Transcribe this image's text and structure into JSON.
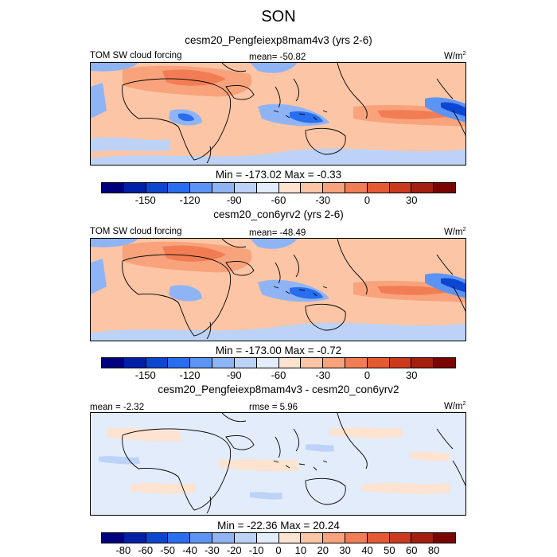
{
  "season": "SON",
  "unit_base": "W/m",
  "unit_exp": "2",
  "panels": [
    {
      "subtitle": "cesm20_Pengfeiexp8mam4v3 (yrs 2-6)",
      "left_label": "TOM SW cloud forcing",
      "center_label": "mean= -50.82",
      "minmax": "Min = -173.02 Max =  -0.33"
    },
    {
      "subtitle": "cesm20_con6yrv2 (yrs 2-6)",
      "left_label": "TOM SW cloud forcing",
      "center_label": "mean= -48.49",
      "minmax": "Min = -173.00 Max =  -0.72"
    },
    {
      "subtitle": "cesm20_Pengfeiexp8mam4v3 - cesm20_con6yrv2",
      "left_label": "mean =  -2.32",
      "center_label": "rmse =   5.96",
      "minmax": "Min = -22.36 Max =  20.24"
    }
  ],
  "colorbar_abs": {
    "colors": [
      "#00007f",
      "#0020a8",
      "#0d47d1",
      "#2a6ef0",
      "#5c94f5",
      "#8fb4f5",
      "#bcd3f7",
      "#e3ecfb",
      "#fde3d0",
      "#fcc5a6",
      "#f8a37c",
      "#f27d55",
      "#e55a33",
      "#cc3a1e",
      "#a51f10",
      "#7a0500"
    ],
    "tick_labels": [
      "-150",
      "-120",
      "-90",
      "-60",
      "-30",
      "0",
      "30"
    ]
  },
  "colorbar_diff": {
    "colors": [
      "#00007f",
      "#0020a8",
      "#0d47d1",
      "#2a6ef0",
      "#5c94f5",
      "#8fb4f5",
      "#bcd3f7",
      "#e3ecfb",
      "#fde3d0",
      "#fcc5a6",
      "#f8a37c",
      "#f27d55",
      "#e55a33",
      "#cc3a1e",
      "#a51f10",
      "#7a0500"
    ],
    "tick_labels": [
      "-80",
      "-60",
      "-50",
      "-40",
      "-30",
      "-20",
      "-10",
      "0",
      "10",
      "20",
      "30",
      "40",
      "50",
      "60",
      "80"
    ]
  },
  "chart_data": [
    {
      "type": "heatmap",
      "title": "cesm20_Pengfeiexp8mam4v3 (yrs 2-6)",
      "variable": "TOM SW cloud forcing",
      "mean": -50.82,
      "min": -173.02,
      "max": -0.33,
      "levels": [
        -150,
        -120,
        -90,
        -60,
        -30,
        0,
        30
      ]
    },
    {
      "type": "heatmap",
      "title": "cesm20_con6yrv2 (yrs 2-6)",
      "variable": "TOM SW cloud forcing",
      "mean": -48.49,
      "min": -173.0,
      "max": -0.72,
      "levels": [
        -150,
        -120,
        -90,
        -60,
        -30,
        0,
        30
      ]
    },
    {
      "type": "heatmap",
      "title": "cesm20_Pengfeiexp8mam4v3 - cesm20_con6yrv2",
      "mean": -2.32,
      "rmse": 5.96,
      "min": -22.36,
      "max": 20.24,
      "levels": [
        -80,
        -60,
        -50,
        -40,
        -30,
        -20,
        -10,
        0,
        10,
        20,
        30,
        40,
        50,
        60,
        80
      ]
    }
  ]
}
